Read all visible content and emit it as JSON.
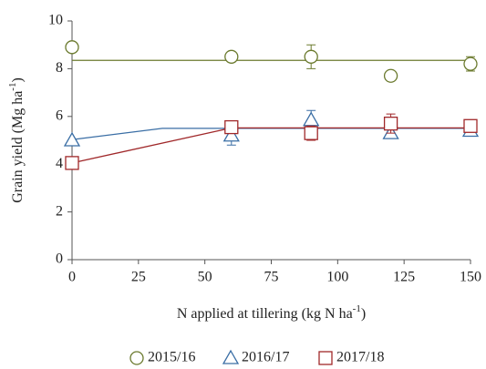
{
  "chart_data": {
    "type": "scatter",
    "xlabel": [
      "N applied at tillering (kg N ha",
      "-1",
      ")"
    ],
    "ylabel": [
      "Grain yield (Mg ha",
      "-1",
      ")"
    ],
    "x": [
      0,
      60,
      90,
      120,
      150
    ],
    "xlim": [
      0,
      150
    ],
    "xticks": [
      0,
      25,
      50,
      75,
      100,
      125,
      150
    ],
    "ylim": [
      0,
      10
    ],
    "yticks": [
      0,
      2,
      4,
      6,
      8,
      10
    ],
    "grid": false,
    "legend": "bottom",
    "series": [
      {
        "name": "2015/16",
        "color": "#6b7a2e",
        "marker": "circle",
        "values": [
          8.9,
          8.5,
          8.5,
          7.7,
          8.2
        ],
        "errors": [
          null,
          null,
          0.5,
          null,
          0.3
        ],
        "fit": {
          "x": [
            0,
            150
          ],
          "values": [
            8.35,
            8.35
          ]
        }
      },
      {
        "name": "2016/17",
        "color": "#3a6ea5",
        "marker": "triangle",
        "values": [
          5.0,
          5.2,
          5.85,
          5.3,
          5.4
        ],
        "errors": [
          null,
          0.4,
          0.4,
          null,
          null
        ],
        "fit": {
          "x": [
            0,
            34,
            150
          ],
          "values": [
            5.03,
            5.5,
            5.5
          ]
        }
      },
      {
        "name": "2017/18",
        "color": "#a0282a",
        "marker": "square",
        "values": [
          4.05,
          5.55,
          5.3,
          5.7,
          5.6
        ],
        "errors": [
          0.2,
          0.2,
          0.3,
          0.4,
          null
        ],
        "fit": {
          "x": [
            0,
            60,
            150
          ],
          "values": [
            4.05,
            5.52,
            5.52
          ]
        }
      }
    ]
  }
}
